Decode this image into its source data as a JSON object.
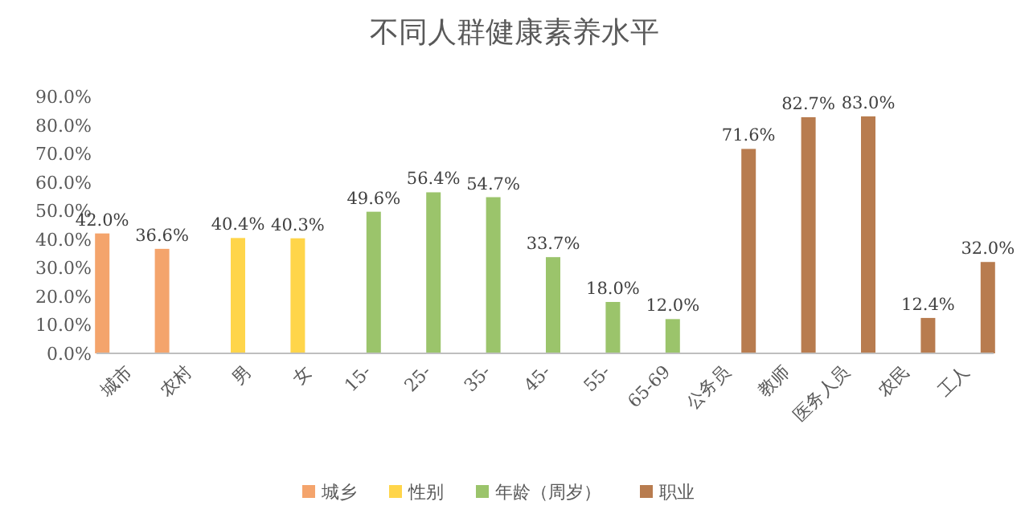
{
  "chart_data": {
    "type": "bar",
    "title": "不同人群健康素养水平",
    "categories": [
      "城市",
      "农村",
      "男",
      "女",
      "15-",
      "25-",
      "35-",
      "45-",
      "55-",
      "65-69",
      "公务员",
      "教师",
      "医务人员",
      "农民",
      "工人"
    ],
    "series": [
      {
        "name": "城乡",
        "color": "#f4a46c",
        "values": [
          42.0,
          36.6,
          null,
          null,
          null,
          null,
          null,
          null,
          null,
          null,
          null,
          null,
          null,
          null,
          null
        ],
        "value_labels": [
          "42.0%",
          "36.6%",
          null,
          null,
          null,
          null,
          null,
          null,
          null,
          null,
          null,
          null,
          null,
          null,
          null
        ]
      },
      {
        "name": "性别",
        "color": "#ffd54a",
        "values": [
          null,
          null,
          40.4,
          40.3,
          null,
          null,
          null,
          null,
          null,
          null,
          null,
          null,
          null,
          null,
          null
        ],
        "value_labels": [
          null,
          null,
          "40.4%",
          "40.3%",
          null,
          null,
          null,
          null,
          null,
          null,
          null,
          null,
          null,
          null,
          null
        ]
      },
      {
        "name": "年龄（周岁）",
        "color": "#9bc46b",
        "values": [
          null,
          null,
          null,
          null,
          49.6,
          56.4,
          54.7,
          33.7,
          18.0,
          12.0,
          null,
          null,
          null,
          null,
          null
        ],
        "value_labels": [
          null,
          null,
          null,
          null,
          "49.6%",
          "56.4%",
          "54.7%",
          "33.7%",
          "18.0%",
          "12.0%",
          null,
          null,
          null,
          null,
          null
        ]
      },
      {
        "name": "职业",
        "color": "#b87c4f",
        "values": [
          null,
          null,
          null,
          null,
          null,
          null,
          null,
          null,
          null,
          null,
          71.6,
          82.7,
          83.0,
          12.4,
          32.0
        ],
        "value_labels": [
          null,
          null,
          null,
          null,
          null,
          null,
          null,
          null,
          null,
          null,
          "71.6%",
          "82.7%",
          "83.0%",
          "12.4%",
          "32.0%"
        ]
      }
    ],
    "ylim": [
      0,
      90
    ],
    "yticks": [
      {
        "value": 0,
        "label": "0.0%"
      },
      {
        "value": 10,
        "label": "10.0%"
      },
      {
        "value": 20,
        "label": "20.0%"
      },
      {
        "value": 30,
        "label": "30.0%"
      },
      {
        "value": 40,
        "label": "40.0%"
      },
      {
        "value": 50,
        "label": "50.0%"
      },
      {
        "value": 60,
        "label": "60.0%"
      },
      {
        "value": 70,
        "label": "70.0%"
      },
      {
        "value": 80,
        "label": "80.0%"
      },
      {
        "value": 90,
        "label": "90.0%"
      }
    ],
    "grid": false,
    "legend": "bottom"
  }
}
